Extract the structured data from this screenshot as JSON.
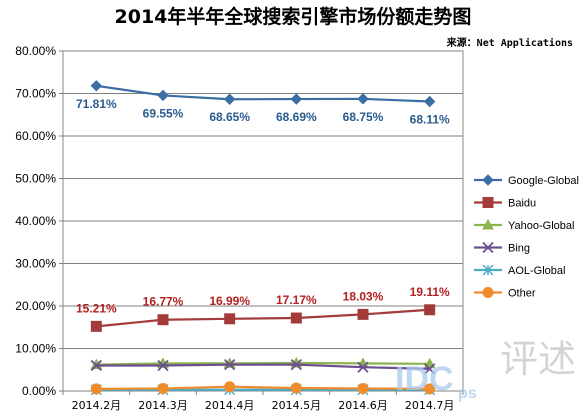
{
  "chart_data": {
    "type": "line",
    "title": "2014年半年全球搜索引擎市场份额走势图",
    "source": "来源：Net Applications",
    "categories": [
      "2014.2月",
      "2014.3月",
      "2014.4月",
      "2014.5月",
      "2014.6月",
      "2014.7月"
    ],
    "y_ticks": [
      "0.00%",
      "10.00%",
      "20.00%",
      "30.00%",
      "40.00%",
      "50.00%",
      "60.00%",
      "70.00%",
      "80.00%"
    ],
    "ylim": [
      0,
      80
    ],
    "grid": true,
    "legend_position": "right",
    "series": [
      {
        "name": "Google-Global",
        "values": [
          71.81,
          69.55,
          68.65,
          68.69,
          68.75,
          68.11
        ],
        "color": "#3a6ea5",
        "marker": "diamond",
        "labels": [
          "71.81%",
          "69.55%",
          "68.65%",
          "68.69%",
          "68.75%",
          "68.11%"
        ]
      },
      {
        "name": "Baidu",
        "values": [
          15.21,
          16.77,
          16.99,
          17.17,
          18.03,
          19.11
        ],
        "color": "#a33b3b",
        "marker": "square",
        "labels": [
          "15.21%",
          "16.77%",
          "16.99%",
          "17.17%",
          "18.03%",
          "19.11%"
        ]
      },
      {
        "name": "Yahoo-Global",
        "values": [
          6.2,
          6.5,
          6.5,
          6.6,
          6.5,
          6.4
        ],
        "color": "#8db34f",
        "marker": "triangle"
      },
      {
        "name": "Bing",
        "values": [
          6.0,
          6.0,
          6.2,
          6.2,
          5.6,
          5.2
        ],
        "color": "#6b4f8f",
        "marker": "x"
      },
      {
        "name": "AOL-Global",
        "values": [
          0.3,
          0.3,
          0.3,
          0.3,
          0.3,
          0.3
        ],
        "color": "#4bacc6",
        "marker": "star"
      },
      {
        "name": "Other",
        "values": [
          0.5,
          0.6,
          1.0,
          0.7,
          0.6,
          0.5
        ],
        "color": "#f08c2b",
        "marker": "circle"
      }
    ]
  },
  "watermark": {
    "text": "IDC",
    "sub": "ps",
    "glyph": "评述"
  }
}
